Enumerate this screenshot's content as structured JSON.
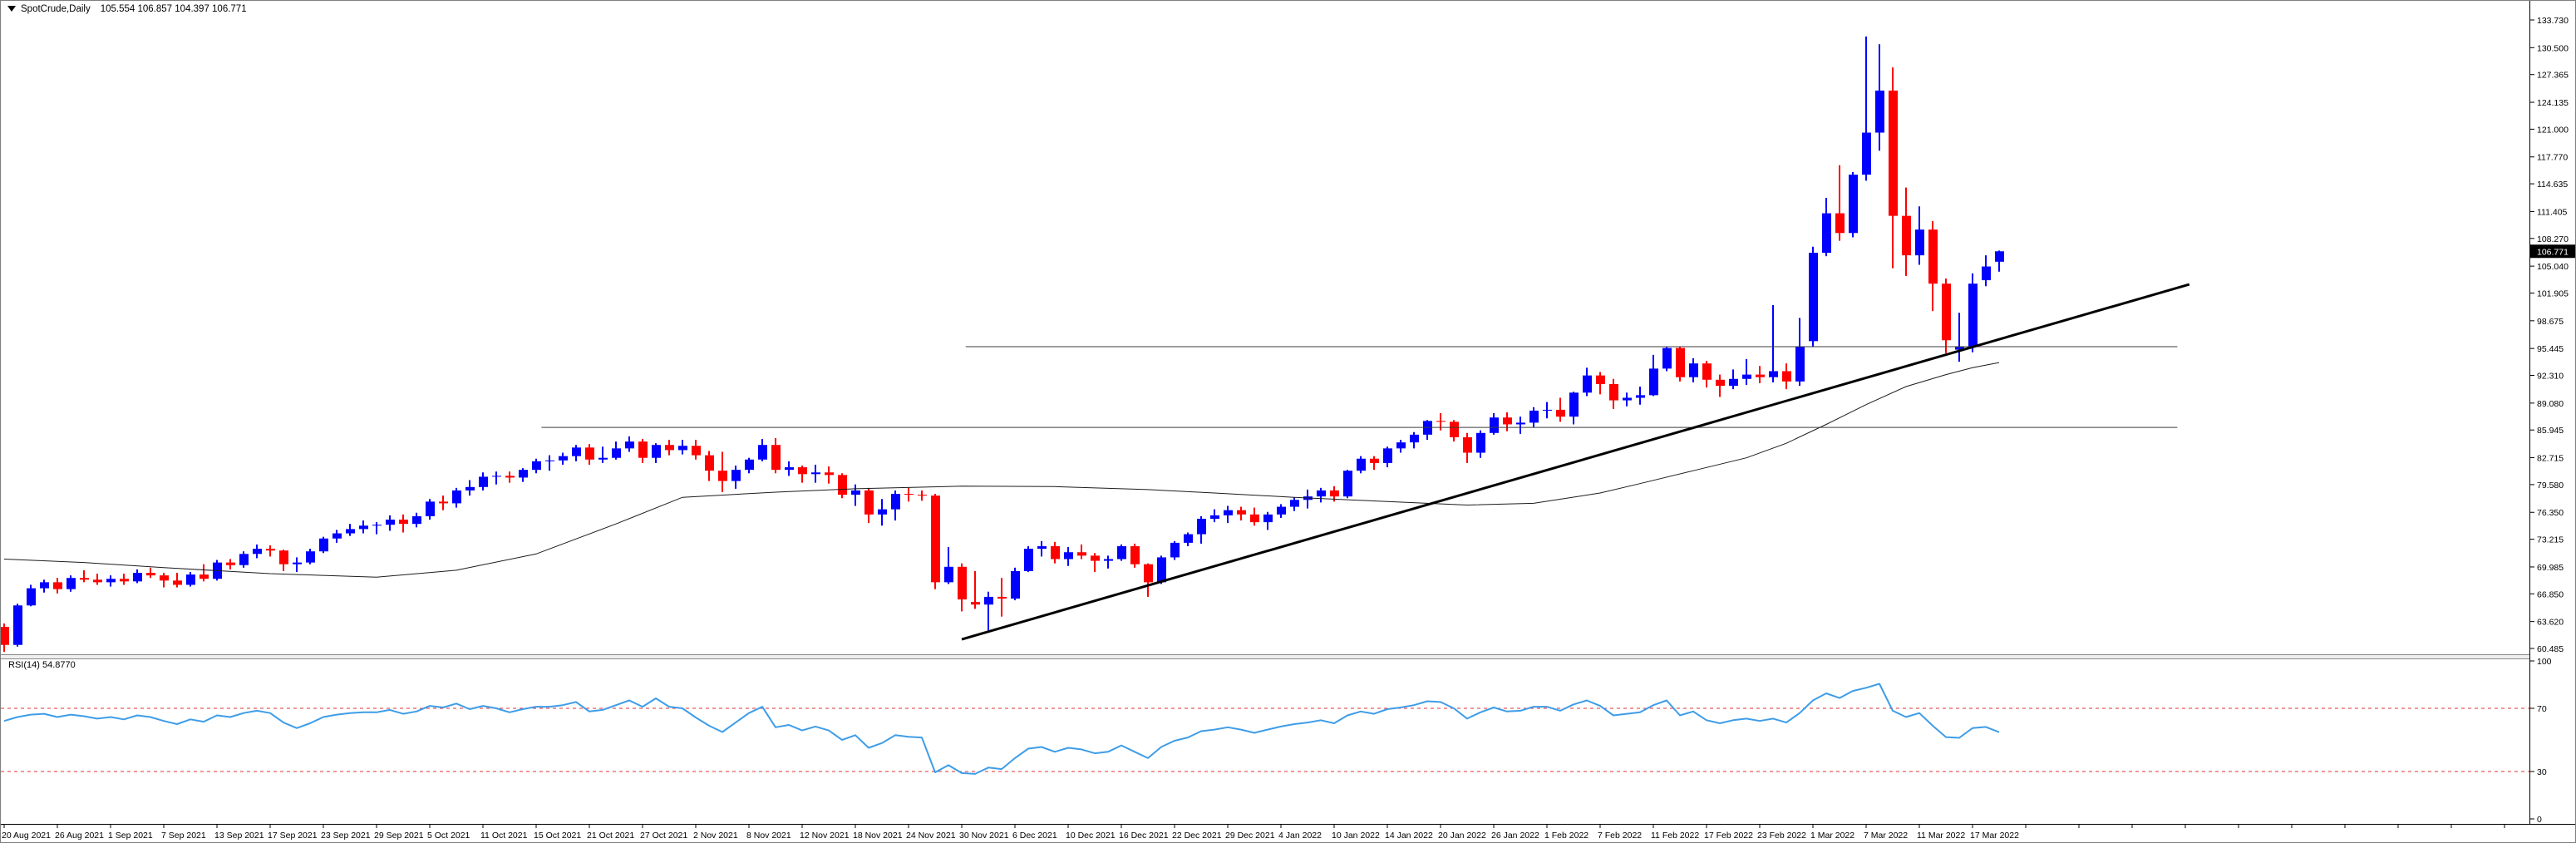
{
  "title": {
    "symbol": "SpotCrude,Daily",
    "ohlc": "105.554 106.857 104.397 106.771"
  },
  "rsi_label": "RSI(14) 54.8770",
  "chart_data": {
    "type": "candlestick",
    "symbol": "SpotCrude",
    "timeframe": "Daily",
    "last_bar": {
      "open": "105.554",
      "high": "106.857",
      "low": "104.397",
      "close": "106.771"
    },
    "current_price": "106.771",
    "price_axis_ticks": [
      "133.730",
      "130.500",
      "127.365",
      "124.135",
      "121.000",
      "117.770",
      "114.635",
      "111.405",
      "108.270",
      "105.040",
      "101.905",
      "98.675",
      "95.445",
      "92.310",
      "89.080",
      "85.945",
      "82.715",
      "79.580",
      "76.350",
      "73.215",
      "69.985",
      "66.850",
      "63.620",
      "60.485"
    ],
    "price_axis_range": [
      60.485,
      133.73
    ],
    "time_labels": [
      "20 Aug 2021",
      "26 Aug 2021",
      "1 Sep 2021",
      "7 Sep 2021",
      "13 Sep 2021",
      "17 Sep 2021",
      "23 Sep 2021",
      "29 Sep 2021",
      "5 Oct 2021",
      "11 Oct 2021",
      "15 Oct 2021",
      "21 Oct 2021",
      "27 Oct 2021",
      "2 Nov 2021",
      "8 Nov 2021",
      "12 Nov 2021",
      "18 Nov 2021",
      "24 Nov 2021",
      "30 Nov 2021",
      "6 Dec 2021",
      "10 Dec 2021",
      "16 Dec 2021",
      "22 Dec 2021",
      "29 Dec 2021",
      "4 Jan 2022",
      "10 Jan 2022",
      "14 Jan 2022",
      "20 Jan 2022",
      "26 Jan 2022",
      "1 Feb 2022",
      "7 Feb 2022",
      "11 Feb 2022",
      "17 Feb 2022",
      "23 Feb 2022",
      "1 Mar 2022",
      "7 Mar 2022",
      "11 Mar 2022",
      "17 Mar 2022"
    ],
    "label_every_n_bars": 4,
    "candles_ohlc": [
      [
        63.0,
        63.4,
        60.1,
        60.9
      ],
      [
        60.9,
        65.7,
        60.7,
        65.5
      ],
      [
        65.5,
        67.9,
        65.4,
        67.5
      ],
      [
        67.5,
        68.5,
        67.0,
        68.2
      ],
      [
        68.2,
        68.7,
        66.9,
        67.4
      ],
      [
        67.4,
        69.0,
        67.1,
        68.7
      ],
      [
        68.7,
        69.6,
        68.2,
        68.5
      ],
      [
        68.5,
        69.2,
        67.9,
        68.2
      ],
      [
        68.2,
        69.0,
        67.7,
        68.6
      ],
      [
        68.6,
        69.2,
        67.9,
        68.3
      ],
      [
        68.3,
        69.7,
        68.1,
        69.3
      ],
      [
        69.3,
        69.9,
        68.7,
        69.0
      ],
      [
        69.0,
        69.3,
        67.6,
        68.4
      ],
      [
        68.4,
        69.3,
        67.6,
        67.9
      ],
      [
        67.9,
        69.4,
        67.7,
        69.1
      ],
      [
        69.1,
        70.3,
        68.3,
        68.6
      ],
      [
        68.6,
        70.8,
        68.4,
        70.5
      ],
      [
        70.5,
        70.9,
        69.7,
        70.2
      ],
      [
        70.2,
        71.8,
        69.9,
        71.5
      ],
      [
        71.5,
        72.6,
        71.0,
        72.1
      ],
      [
        72.1,
        72.5,
        71.2,
        71.9
      ],
      [
        71.9,
        72.0,
        69.5,
        70.3
      ],
      [
        70.3,
        71.1,
        69.4,
        70.5
      ],
      [
        70.5,
        72.1,
        70.3,
        71.8
      ],
      [
        71.8,
        73.5,
        71.6,
        73.3
      ],
      [
        73.3,
        74.3,
        72.8,
        73.9
      ],
      [
        73.9,
        75.0,
        73.6,
        74.4
      ],
      [
        74.4,
        75.4,
        73.9,
        74.8
      ],
      [
        74.8,
        75.2,
        73.8,
        74.9
      ],
      [
        74.9,
        76.0,
        74.2,
        75.5
      ],
      [
        75.5,
        76.1,
        74.0,
        75.0
      ],
      [
        75.0,
        76.3,
        74.6,
        75.9
      ],
      [
        75.9,
        77.9,
        75.5,
        77.6
      ],
      [
        77.6,
        78.3,
        76.6,
        77.4
      ],
      [
        77.4,
        79.2,
        76.9,
        78.9
      ],
      [
        78.9,
        80.1,
        78.3,
        79.3
      ],
      [
        79.3,
        81.0,
        78.9,
        80.5
      ],
      [
        80.5,
        81.1,
        79.6,
        80.6
      ],
      [
        80.6,
        81.1,
        79.8,
        80.4
      ],
      [
        80.4,
        81.5,
        79.9,
        81.3
      ],
      [
        81.3,
        82.6,
        80.9,
        82.3
      ],
      [
        82.3,
        83.0,
        81.2,
        82.4
      ],
      [
        82.4,
        83.3,
        81.9,
        82.9
      ],
      [
        82.9,
        84.2,
        82.3,
        83.9
      ],
      [
        83.9,
        84.3,
        81.9,
        82.5
      ],
      [
        82.5,
        84.0,
        82.1,
        82.7
      ],
      [
        82.7,
        84.6,
        82.5,
        83.8
      ],
      [
        83.8,
        85.2,
        83.4,
        84.6
      ],
      [
        84.6,
        84.9,
        82.1,
        82.7
      ],
      [
        82.7,
        84.4,
        82.1,
        84.2
      ],
      [
        84.2,
        84.8,
        83.0,
        83.6
      ],
      [
        83.6,
        84.8,
        83.1,
        84.1
      ],
      [
        84.1,
        84.8,
        82.5,
        83.0
      ],
      [
        83.0,
        83.5,
        80.0,
        81.2
      ],
      [
        81.2,
        83.4,
        78.7,
        80.0
      ],
      [
        80.0,
        81.8,
        79.1,
        81.3
      ],
      [
        81.3,
        82.7,
        80.9,
        82.5
      ],
      [
        82.5,
        84.9,
        82.3,
        84.2
      ],
      [
        84.2,
        85.0,
        80.9,
        81.3
      ],
      [
        81.3,
        82.3,
        80.6,
        81.6
      ],
      [
        81.6,
        81.8,
        79.8,
        80.8
      ],
      [
        80.8,
        81.9,
        79.8,
        81.0
      ],
      [
        81.0,
        81.7,
        79.7,
        80.7
      ],
      [
        80.7,
        80.9,
        78.0,
        78.4
      ],
      [
        78.4,
        79.6,
        77.1,
        78.9
      ],
      [
        78.9,
        79.2,
        75.1,
        76.1
      ],
      [
        76.1,
        77.9,
        74.8,
        76.7
      ],
      [
        76.7,
        78.9,
        75.4,
        78.5
      ],
      [
        78.5,
        79.2,
        77.6,
        78.4
      ],
      [
        78.4,
        78.9,
        77.7,
        78.3
      ],
      [
        78.3,
        78.5,
        67.4,
        68.2
      ],
      [
        68.2,
        72.3,
        68.0,
        70.0
      ],
      [
        70.0,
        70.4,
        64.8,
        66.2
      ],
      [
        65.9,
        69.5,
        65.1,
        65.6
      ],
      [
        65.6,
        67.1,
        62.4,
        66.5
      ],
      [
        66.5,
        68.7,
        64.2,
        66.3
      ],
      [
        66.3,
        69.9,
        66.1,
        69.5
      ],
      [
        69.5,
        72.4,
        69.4,
        72.1
      ],
      [
        72.1,
        73.0,
        71.2,
        72.4
      ],
      [
        72.4,
        72.9,
        70.4,
        70.9
      ],
      [
        70.9,
        72.3,
        70.1,
        71.7
      ],
      [
        71.7,
        72.6,
        70.9,
        71.3
      ],
      [
        71.3,
        71.6,
        69.4,
        70.7
      ],
      [
        70.7,
        71.3,
        69.8,
        70.9
      ],
      [
        70.9,
        72.6,
        70.7,
        72.4
      ],
      [
        72.4,
        72.7,
        69.9,
        70.3
      ],
      [
        70.3,
        70.4,
        66.5,
        68.2
      ],
      [
        68.2,
        71.3,
        68.0,
        71.1
      ],
      [
        71.1,
        73.0,
        70.8,
        72.8
      ],
      [
        72.8,
        74.0,
        72.4,
        73.8
      ],
      [
        73.8,
        75.9,
        72.7,
        75.6
      ],
      [
        75.6,
        76.7,
        75.2,
        76.0
      ],
      [
        76.0,
        77.1,
        75.1,
        76.6
      ],
      [
        76.6,
        77.0,
        75.4,
        76.1
      ],
      [
        76.1,
        76.9,
        74.8,
        75.2
      ],
      [
        75.2,
        76.4,
        74.3,
        76.1
      ],
      [
        76.1,
        77.3,
        75.7,
        77.0
      ],
      [
        77.0,
        78.1,
        76.5,
        77.8
      ],
      [
        77.8,
        79.0,
        76.8,
        78.2
      ],
      [
        78.2,
        79.2,
        77.5,
        78.9
      ],
      [
        78.9,
        79.4,
        77.6,
        78.2
      ],
      [
        78.2,
        81.3,
        78.0,
        81.2
      ],
      [
        81.2,
        82.9,
        80.9,
        82.6
      ],
      [
        82.6,
        82.9,
        81.3,
        82.1
      ],
      [
        82.1,
        84.0,
        81.6,
        83.8
      ],
      [
        83.8,
        84.8,
        83.3,
        84.5
      ],
      [
        84.5,
        85.7,
        83.8,
        85.4
      ],
      [
        85.4,
        87.1,
        84.8,
        87.0
      ],
      [
        87.0,
        87.9,
        85.9,
        86.9
      ],
      [
        86.9,
        87.1,
        84.6,
        85.1
      ],
      [
        85.1,
        85.6,
        82.1,
        83.3
      ],
      [
        83.3,
        85.9,
        82.7,
        85.6
      ],
      [
        85.6,
        87.9,
        85.4,
        87.4
      ],
      [
        87.4,
        88.0,
        85.8,
        86.6
      ],
      [
        86.6,
        87.5,
        85.5,
        86.8
      ],
      [
        86.8,
        88.6,
        86.3,
        88.2
      ],
      [
        88.2,
        89.2,
        87.3,
        88.3
      ],
      [
        88.3,
        89.7,
        86.9,
        87.5
      ],
      [
        87.5,
        90.4,
        86.6,
        90.3
      ],
      [
        90.3,
        93.2,
        89.9,
        92.3
      ],
      [
        92.3,
        92.7,
        90.1,
        91.3
      ],
      [
        91.3,
        91.9,
        88.4,
        89.4
      ],
      [
        89.4,
        90.3,
        88.7,
        89.7
      ],
      [
        89.7,
        91.0,
        88.9,
        90.0
      ],
      [
        90.0,
        94.7,
        89.9,
        93.1
      ],
      [
        93.1,
        95.6,
        92.8,
        95.5
      ],
      [
        95.5,
        95.7,
        91.6,
        92.1
      ],
      [
        92.1,
        94.3,
        91.5,
        93.7
      ],
      [
        93.7,
        94.0,
        90.9,
        91.8
      ],
      [
        91.8,
        92.4,
        89.8,
        91.1
      ],
      [
        91.1,
        93.0,
        90.7,
        91.9
      ],
      [
        91.9,
        94.2,
        91.2,
        92.4
      ],
      [
        92.4,
        93.4,
        91.4,
        92.1
      ],
      [
        92.1,
        100.5,
        91.5,
        92.8
      ],
      [
        92.8,
        93.7,
        90.7,
        91.6
      ],
      [
        91.6,
        99.0,
        91.1,
        95.7
      ],
      [
        96.3,
        107.3,
        95.6,
        106.6
      ],
      [
        106.6,
        113.0,
        106.2,
        111.2
      ],
      [
        111.2,
        116.8,
        108.0,
        108.9
      ],
      [
        108.9,
        116.0,
        108.4,
        115.7
      ],
      [
        115.7,
        131.8,
        115.0,
        120.6
      ],
      [
        120.6,
        130.9,
        118.5,
        125.5
      ],
      [
        125.5,
        128.2,
        104.8,
        110.9
      ],
      [
        110.9,
        114.2,
        103.9,
        106.3
      ],
      [
        106.3,
        112.0,
        105.2,
        109.3
      ],
      [
        109.3,
        110.3,
        99.8,
        103.0
      ],
      [
        103.0,
        103.6,
        94.9,
        96.4
      ],
      [
        95.3,
        99.6,
        93.9,
        95.7
      ],
      [
        95.7,
        104.2,
        95.0,
        103.0
      ],
      [
        103.4,
        106.3,
        102.7,
        105.0
      ],
      [
        105.554,
        106.857,
        104.397,
        106.771
      ]
    ],
    "moving_average_points": [
      [
        0,
        70.9
      ],
      [
        6,
        70.5
      ],
      [
        12,
        69.9
      ],
      [
        20,
        69.2
      ],
      [
        28,
        68.8
      ],
      [
        34,
        69.6
      ],
      [
        40,
        71.5
      ],
      [
        46,
        75.0
      ],
      [
        51,
        78.1
      ],
      [
        58,
        78.7
      ],
      [
        64,
        79.1
      ],
      [
        72,
        79.4
      ],
      [
        79,
        79.35
      ],
      [
        86,
        79.0
      ],
      [
        91,
        78.6
      ],
      [
        97,
        78.1
      ],
      [
        104,
        77.6
      ],
      [
        110,
        77.2
      ],
      [
        115,
        77.4
      ],
      [
        120,
        78.6
      ],
      [
        123,
        79.7
      ],
      [
        127,
        81.2
      ],
      [
        131,
        82.7
      ],
      [
        134,
        84.4
      ],
      [
        137,
        86.6
      ],
      [
        140,
        88.9
      ],
      [
        143,
        91.0
      ],
      [
        146,
        92.4
      ],
      [
        148,
        93.2
      ],
      [
        150,
        93.8
      ]
    ],
    "trend_line": {
      "from_index": 72,
      "from_price": 61.55,
      "to_index": 164.3,
      "to_price": 102.92
    },
    "horizontal_lines": [
      {
        "price": 86.25,
        "from_index": 40.4,
        "to_index": 163.4
      },
      {
        "price": 95.65,
        "from_index": 72.3,
        "to_index": 163.4
      }
    ],
    "rsi": {
      "label": "RSI(14) 54.8770",
      "levels": [
        70,
        30
      ],
      "axis_labels": [
        "100",
        "70",
        "30",
        "0"
      ],
      "range": [
        0,
        100
      ],
      "values": [
        62,
        64.5,
        66,
        66.5,
        64.5,
        66,
        65,
        63.5,
        64.5,
        63,
        65.5,
        64.5,
        62,
        60,
        63,
        61.5,
        65.5,
        64.5,
        67,
        68.5,
        67,
        61,
        57.5,
        60.5,
        64.5,
        66,
        67,
        67.5,
        67.5,
        69,
        66.5,
        68,
        71.5,
        70.5,
        73,
        69.5,
        71.5,
        70,
        67.5,
        69.5,
        71,
        71,
        72,
        74,
        68,
        69,
        72,
        75,
        71,
        76.3,
        71,
        70,
        64.2,
        59,
        55,
        61,
        67,
        71,
        58,
        59.5,
        56,
        58.5,
        56,
        50,
        53,
        45,
        48,
        53,
        52,
        51.5,
        29.5,
        34,
        29,
        28.5,
        32.5,
        31.5,
        38.5,
        44.5,
        45.5,
        42.5,
        45,
        44,
        41.5,
        42.5,
        46.5,
        42.5,
        38.5,
        45.5,
        49.5,
        51.5,
        55.5,
        56.5,
        58,
        56.5,
        54.5,
        56.5,
        58.5,
        60,
        61,
        62.5,
        60.5,
        65.5,
        68,
        66.5,
        69.5,
        70.5,
        72,
        74.5,
        74,
        70,
        63.5,
        67.5,
        70.5,
        68,
        68.5,
        71,
        71,
        68.5,
        72.5,
        75,
        71.5,
        65.5,
        66.5,
        67.5,
        72,
        75,
        65.5,
        68,
        62.5,
        60.5,
        62.5,
        63.5,
        62,
        63.5,
        61,
        67,
        75,
        79.5,
        76.5,
        81,
        83,
        85.5,
        68.5,
        64.5,
        67,
        59,
        51.8,
        51.3,
        57.5,
        58.2,
        54.9
      ]
    },
    "colors": {
      "up": "#0000ff",
      "down": "#ff0000",
      "ma_line": "#1c1c1c",
      "trend_line": "#000000",
      "horizontal_line": "#3c3c3c",
      "rsi_line": "#3e9de8",
      "rsi_level": "#e03232",
      "axis_text": "#000000",
      "background": "#ffffff",
      "current_price_bg": "#000000",
      "current_price_text": "#ffffff"
    }
  }
}
